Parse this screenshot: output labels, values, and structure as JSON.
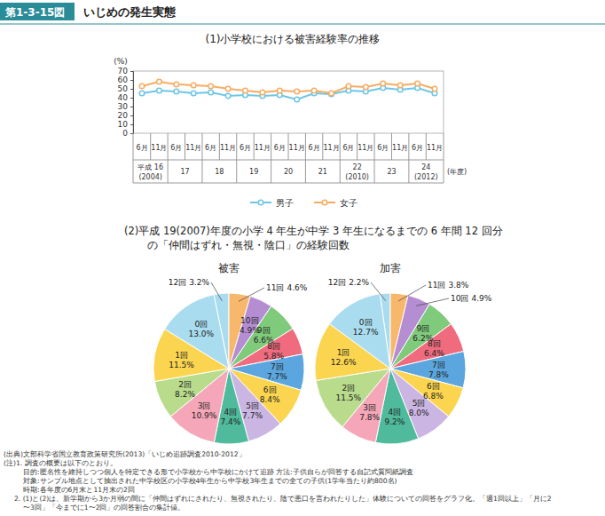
{
  "header": {
    "figure_no": "第1-3-15図",
    "title": "いじめの発生実態"
  },
  "chart_data": [
    {
      "type": "line",
      "title": "(1)小学校における被害経験率の推移",
      "y_label": "(%)",
      "x_label": "(年度)",
      "categories": [
        "6月",
        "11月",
        "6月",
        "11月",
        "6月",
        "11月",
        "6月",
        "11月",
        "6月",
        "11月",
        "6月",
        "11月",
        "6月",
        "11月",
        "6月",
        "11月",
        "6月",
        "11月"
      ],
      "groups": [
        {
          "label": "平成 16",
          "sublabel": "(2004)"
        },
        {
          "label": "17"
        },
        {
          "label": "18"
        },
        {
          "label": "19"
        },
        {
          "label": "20"
        },
        {
          "label": "21"
        },
        {
          "label": "22",
          "sublabel": "(2010)"
        },
        {
          "label": "23"
        },
        {
          "label": "24",
          "sublabel": "(2012)"
        }
      ],
      "series": [
        {
          "name": "男子",
          "color": "#6ec6e6",
          "marker": "circle",
          "values": [
            45,
            48,
            47,
            45,
            46,
            42,
            43,
            42,
            43,
            38,
            45,
            44,
            48,
            47,
            51,
            49,
            51,
            45
          ]
        },
        {
          "name": "女子",
          "color": "#f5ad64",
          "marker": "circle",
          "values": [
            53,
            58,
            55,
            54,
            53,
            50,
            48,
            46,
            48,
            47,
            48,
            45,
            53,
            52,
            56,
            54,
            56,
            50
          ]
        }
      ],
      "ylim": [
        0,
        70
      ],
      "yticks": [
        0,
        10,
        20,
        30,
        40,
        50,
        60,
        70
      ],
      "grid": false,
      "legend": "bottom"
    },
    {
      "type": "pie",
      "title": "被害",
      "categories": [
        "0回",
        "1回",
        "2回",
        "3回",
        "4回",
        "5回",
        "6回",
        "7回",
        "8回",
        "9回",
        "10回",
        "11回",
        "12回"
      ],
      "values": [
        13.0,
        11.5,
        8.2,
        10.9,
        7.4,
        7.7,
        8.4,
        7.7,
        5.8,
        6.6,
        4.9,
        4.6,
        3.2
      ],
      "value_labels": [
        "13.0%",
        "11.5%",
        "8.2%",
        "10.9%",
        "7.4%",
        "7.7%",
        "8.4%",
        "7.7%",
        "5.8%",
        "6.6%",
        "4.9%",
        "4.6%",
        "3.2%"
      ],
      "colors": [
        "#a9dcee",
        "#fbd54f",
        "#b9dc8c",
        "#f5a6b8",
        "#4fba9c",
        "#cbb5e2",
        "#fbd54f",
        "#5ba6de",
        "#ef6b7d",
        "#80ca7c",
        "#b58dd2",
        "#f7b86c",
        "#a9dcee"
      ],
      "data_labels": true
    },
    {
      "type": "pie",
      "title": "加害",
      "categories": [
        "0回",
        "1回",
        "2回",
        "3回",
        "4回",
        "5回",
        "6回",
        "7回",
        "8回",
        "9回",
        "10回",
        "11回",
        "12回"
      ],
      "values": [
        12.7,
        12.6,
        11.5,
        7.8,
        9.2,
        8.0,
        6.8,
        7.8,
        6.4,
        6.2,
        4.9,
        3.8,
        2.2
      ],
      "value_labels": [
        "12.7%",
        "12.6%",
        "11.5%",
        "7.8%",
        "9.2%",
        "8.0%",
        "6.8%",
        "7.8%",
        "6.4%",
        "6.2%",
        "4.9%",
        "3.8%",
        "2.2%"
      ],
      "colors": [
        "#a9dcee",
        "#fbd54f",
        "#b9dc8c",
        "#f5a6b8",
        "#4fba9c",
        "#cbb5e2",
        "#fbd54f",
        "#5ba6de",
        "#ef6b7d",
        "#80ca7c",
        "#b58dd2",
        "#f7b86c",
        "#a9dcee"
      ],
      "data_labels": true
    }
  ],
  "section_title": [
    "(2)平成 19(2007)年度の小学 4 年生が中学 3 年生になるまでの 6 年間 12 回分",
    "の「仲間はずれ・無視・陰口」の経験回数"
  ],
  "notes": [
    "(出典)文部科学省国立教育政策研究所(2013)「いじめ追跡調査2010-2012」",
    "(注)1. 調査の概要は以下のとおり。",
    "目的:匿名性を維持しつつ個人を特定できる形で小学校から中学校にかけて追跡 方法:子供自らが回答する自記式質問紙調査",
    "対象:サンプル地点として抽出された中学校区の小学校4年生から中学校3年生までの全ての子供(1学年当たり約800名)",
    "時期:各年度の6月末と11月末の2回",
    "2. (1)と(2)は、新学期から3か月弱の間に「仲間はずれにされたり、無視されたり、陰で悪口を言われたりした」体験についての回答をグラフ化。「週1回以上」「月に2",
    "〜3回」「今までに1〜2回」の回答割合の集計値。"
  ]
}
